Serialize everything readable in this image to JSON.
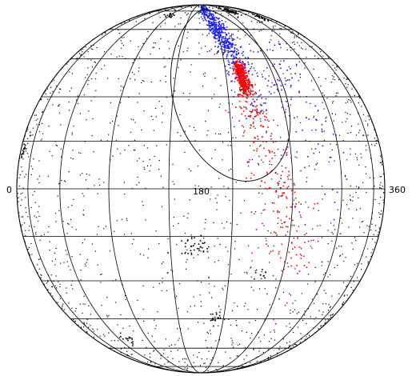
{
  "chart_data": {
    "type": "scatter",
    "projection": "orthographic-sphere",
    "title": "",
    "xlabel": "",
    "ylabel": "",
    "xlim": [
      0,
      360
    ],
    "ylim": [
      -90,
      90
    ],
    "x_tick_labels": [
      "0",
      "180",
      "360"
    ],
    "grid": true,
    "meridian_step_deg": 20,
    "parallel_step_deg": 15,
    "legend": "none",
    "colors": {
      "background_points": "#000000",
      "stream_blue": "#1a1aff",
      "stream_red": "#ff0000",
      "grid": "#000000"
    },
    "ellipse": {
      "center_lon": 190,
      "center_lat": 40,
      "semi_axis_lon_deg": 22,
      "semi_axis_lat_deg": 38,
      "tilt_deg": 10
    },
    "series": [
      {
        "color_key": "stream_blue",
        "track": [
          {
            "lon": 185,
            "lat": 74,
            "spread": 5,
            "count": 80
          },
          {
            "lon": 190,
            "lat": 62,
            "spread": 5,
            "count": 160
          },
          {
            "lon": 193,
            "lat": 52,
            "spread": 4,
            "count": 160
          },
          {
            "lon": 196,
            "lat": 42,
            "spread": 4,
            "count": 90
          },
          {
            "lon": 200,
            "lat": 30,
            "spread": 6,
            "count": 40
          },
          {
            "lon": 215,
            "lat": 35,
            "spread": 10,
            "count": 60
          },
          {
            "lon": 225,
            "lat": 5,
            "spread": 12,
            "count": 25
          }
        ]
      },
      {
        "color_key": "stream_red",
        "track": [
          {
            "lon": 196,
            "lat": 40,
            "spread": 2,
            "count": 240
          },
          {
            "lon": 197,
            "lat": 34,
            "spread": 2,
            "count": 200
          },
          {
            "lon": 198,
            "lat": 24,
            "spread": 5,
            "count": 70
          },
          {
            "lon": 203,
            "lat": 10,
            "spread": 7,
            "count": 60
          },
          {
            "lon": 208,
            "lat": -5,
            "spread": 8,
            "count": 60
          },
          {
            "lon": 212,
            "lat": -20,
            "spread": 9,
            "count": 50
          }
        ]
      },
      {
        "color_key": "background_points",
        "clusters": [
          {
            "lon": 218,
            "lat": 75,
            "spread": 3,
            "count": 60
          },
          {
            "lon": 243,
            "lat": 68,
            "spread": 2,
            "count": 25
          },
          {
            "lon": 30,
            "lat": 52,
            "spread": 2,
            "count": 20
          },
          {
            "lon": 20,
            "lat": 35,
            "spread": 1.5,
            "count": 12
          },
          {
            "lon": 100,
            "lat": 12,
            "spread": 1.5,
            "count": 15
          },
          {
            "lon": 2,
            "lat": -5,
            "spread": 2,
            "count": 18
          },
          {
            "lon": 178,
            "lat": -18,
            "spread": 2.5,
            "count": 35
          },
          {
            "lon": 350,
            "lat": -3,
            "spread": 1.5,
            "count": 14
          },
          {
            "lon": 186,
            "lat": -45,
            "spread": 2,
            "count": 18
          },
          {
            "lon": 138,
            "lat": -55,
            "spread": 2,
            "count": 14
          },
          {
            "lon": 150,
            "lat": 70,
            "spread": 2,
            "count": 14
          },
          {
            "lon": 202,
            "lat": -28,
            "spread": 1.5,
            "count": 10
          },
          {
            "lon": 65,
            "lat": -10,
            "spread": 1.5,
            "count": 8
          }
        ],
        "uniform_count": 1600
      }
    ]
  }
}
